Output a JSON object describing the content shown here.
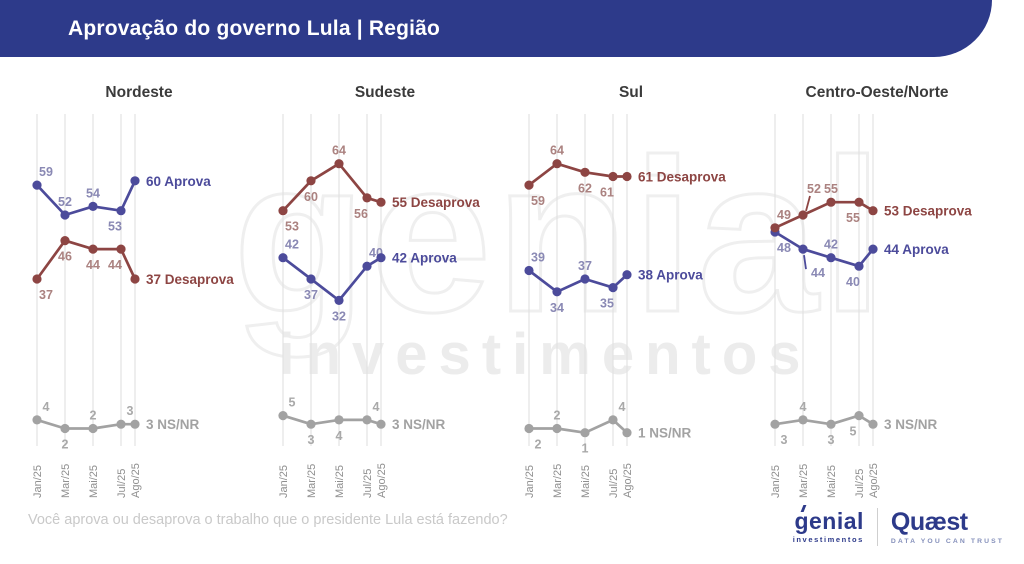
{
  "header": {
    "title": "Aprovação do governo Lula | Região"
  },
  "watermark": {
    "word": "genial",
    "sub": "investimentos"
  },
  "footer": {
    "question": "Você aprova ou desaprova o trabalho que o presidente Lula está fazendo?"
  },
  "logos": {
    "genial": {
      "name": "genial",
      "sub": "investimentos"
    },
    "quaest": {
      "name": "Quæst",
      "tagline": "DATA YOU CAN TRUST"
    }
  },
  "colors": {
    "header_bg": "#2d3a8a",
    "header_text": "#ffffff",
    "aprova": "#4c4b9b",
    "aprova_label": "#8a89b4",
    "desaprova": "#8d4543",
    "desaprova_label": "#ab8280",
    "nsnr": "#a2a2a2",
    "nsnr_label": "#a9a9a9",
    "grid": "#e2e2e2",
    "chart_title": "#3b3b3b",
    "axis_label": "#8f8f8f",
    "question_text": "#c9c9c9",
    "quaest_tagline": "#8590bb"
  },
  "chart_data": [
    {
      "type": "line",
      "title": "Nordeste",
      "x": [
        "Jan/25",
        "Mar/25",
        "Mai/25",
        "Jul/25",
        "Ago/25"
      ],
      "ylim": [
        0,
        75
      ],
      "grid": "vertical",
      "legend_position": "end-of-line",
      "series": [
        {
          "name": "Aprova",
          "color_key": "aprova",
          "values": [
            59,
            52,
            54,
            53,
            60
          ],
          "label_pos": [
            "a",
            "a",
            "a",
            "b"
          ]
        },
        {
          "name": "Desaprova",
          "color_key": "desaprova",
          "values": [
            37,
            46,
            44,
            44,
            37
          ],
          "label_pos": [
            "b",
            "b",
            "b",
            "b"
          ]
        },
        {
          "name": "NS/NR",
          "color_key": "nsnr",
          "values": [
            4,
            2,
            2,
            3,
            3
          ],
          "label_pos": [
            "a",
            "b",
            "a",
            "a"
          ]
        }
      ]
    },
    {
      "type": "line",
      "title": "Sudeste",
      "x": [
        "Jan/25",
        "Mar/25",
        "Mai/25",
        "Jul/25",
        "Ago/25"
      ],
      "ylim": [
        0,
        75
      ],
      "grid": "vertical",
      "legend_position": "end-of-line",
      "series": [
        {
          "name": "Aprova",
          "color_key": "aprova",
          "values": [
            42,
            37,
            32,
            40,
            42
          ],
          "label_pos": [
            "a",
            "b",
            "b",
            "a"
          ]
        },
        {
          "name": "Desaprova",
          "color_key": "desaprova",
          "values": [
            53,
            60,
            64,
            56,
            55
          ],
          "label_pos": [
            "b",
            "b",
            "a",
            "b"
          ]
        },
        {
          "name": "NS/NR",
          "color_key": "nsnr",
          "values": [
            5,
            3,
            4,
            4,
            3
          ],
          "label_pos": [
            "a",
            "b",
            "b",
            "a"
          ]
        }
      ]
    },
    {
      "type": "line",
      "title": "Sul",
      "x": [
        "Jan/25",
        "Mar/25",
        "Mai/25",
        "Jul/25",
        "Ago/25"
      ],
      "ylim": [
        0,
        75
      ],
      "grid": "vertical",
      "legend_position": "end-of-line",
      "series": [
        {
          "name": "Aprova",
          "color_key": "aprova",
          "values": [
            39,
            34,
            37,
            35,
            38
          ],
          "label_pos": [
            "a",
            "b",
            "a",
            "b"
          ]
        },
        {
          "name": "Desaprova",
          "color_key": "desaprova",
          "values": [
            59,
            64,
            62,
            61,
            61
          ],
          "label_pos": [
            "b",
            "a",
            "b",
            "b"
          ]
        },
        {
          "name": "NS/NR",
          "color_key": "nsnr",
          "values": [
            2,
            2,
            1,
            4,
            1
          ],
          "label_pos": [
            "b",
            "a",
            "b",
            "a"
          ]
        }
      ]
    },
    {
      "type": "line",
      "title": "Centro-Oeste/Norte",
      "x": [
        "Jan/25",
        "Mar/25",
        "Mai/25",
        "Jul/25",
        "Ago/25"
      ],
      "ylim": [
        0,
        75
      ],
      "grid": "vertical",
      "legend_position": "end-of-line",
      "series": [
        {
          "name": "Aprova",
          "color_key": "aprova",
          "values": [
            48,
            44,
            42,
            40,
            44
          ],
          "label_pos": [
            "b",
            "bl",
            "a",
            "b"
          ]
        },
        {
          "name": "Desaprova",
          "color_key": "desaprova",
          "values": [
            49,
            52,
            55,
            55,
            53
          ],
          "label_pos": [
            "a",
            "al",
            "a",
            "b"
          ]
        },
        {
          "name": "NS/NR",
          "color_key": "nsnr",
          "values": [
            3,
            4,
            3,
            5,
            3
          ],
          "label_pos": [
            "b",
            "a",
            "b",
            "b"
          ]
        }
      ]
    }
  ]
}
